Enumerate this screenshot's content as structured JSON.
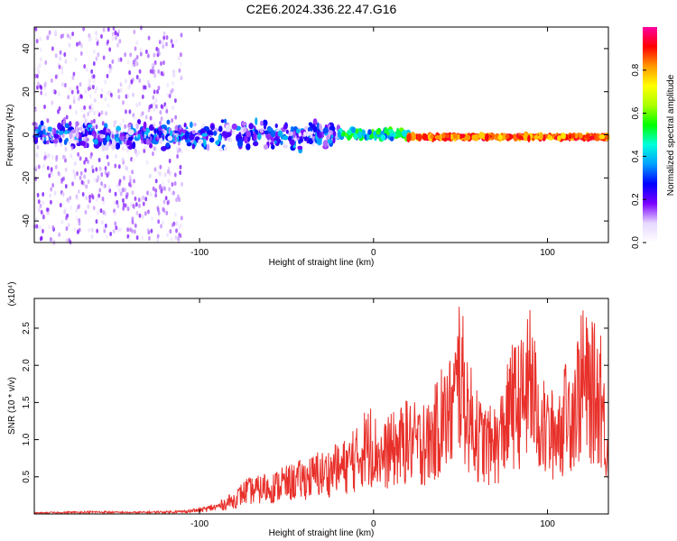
{
  "title": "C2E6.2024.336.22.47.G16",
  "chart_data": [
    {
      "type": "heatmap",
      "xlabel": "Height of straight line (km)",
      "ylabel": "Frequency (Hz)",
      "xlim": [
        -195,
        135
      ],
      "ylim": [
        -50,
        50
      ],
      "x_ticks": [
        -100,
        0,
        100
      ],
      "y_ticks": [
        -40,
        -20,
        0,
        20,
        40
      ],
      "colorbar": {
        "label": "Normalized spectral amplitude",
        "range": [
          0,
          1
        ],
        "ticks": [
          0.0,
          0.2,
          0.4,
          0.6,
          0.8
        ],
        "colors": [
          "#ffffff",
          "#e6d7ff",
          "#7a00ff",
          "#0000ff",
          "#00a0ff",
          "#00ffdd",
          "#00ff00",
          "#aaff00",
          "#ffff00",
          "#ff9900",
          "#ff0000",
          "#ff00a0"
        ]
      },
      "features": [
        {
          "x_range": [
            -195,
            -20
          ],
          "freq_center": 0,
          "freq_spread": 8,
          "amplitude_range": [
            0.05,
            0.4
          ]
        },
        {
          "x_range": [
            -20,
            20
          ],
          "freq_center": 0,
          "freq_spread": 3,
          "amplitude_range": [
            0.3,
            0.6
          ]
        },
        {
          "x_range": [
            20,
            135
          ],
          "freq_center": -1,
          "freq_spread": 1,
          "amplitude_range": [
            0.75,
            0.95
          ]
        }
      ]
    },
    {
      "type": "line",
      "xlabel": "Height of straight line (km)",
      "ylabel": "SNR (10 * v/v)",
      "multiplier": "(x10⁴)",
      "xlim": [
        -195,
        135
      ],
      "ylim": [
        0,
        2.9
      ],
      "x_ticks": [
        -100,
        0,
        100
      ],
      "y_ticks": [
        0.5,
        1.0,
        1.5,
        2.0,
        2.5
      ],
      "series": [
        {
          "color": "#e8302a",
          "x": [
            -195,
            -180,
            -160,
            -140,
            -120,
            -110,
            -100,
            -90,
            -80,
            -75,
            -70,
            -60,
            -50,
            -40,
            -30,
            -20,
            -10,
            -5,
            0,
            5,
            10,
            20,
            30,
            40,
            45,
            50,
            55,
            60,
            70,
            80,
            85,
            90,
            95,
            100,
            110,
            115,
            120,
            125,
            130,
            135
          ],
          "values": [
            0.02,
            0.03,
            0.04,
            0.03,
            0.04,
            0.05,
            0.08,
            0.15,
            0.3,
            0.45,
            0.5,
            0.55,
            0.65,
            0.75,
            0.85,
            0.95,
            1.15,
            1.45,
            1.4,
            1.2,
            1.35,
            1.55,
            1.45,
            2.0,
            2.2,
            2.9,
            2.1,
            1.6,
            1.4,
            2.3,
            2.4,
            2.75,
            2.1,
            1.6,
            2.0,
            2.35,
            2.75,
            2.6,
            2.55,
            1.3
          ]
        }
      ]
    }
  ]
}
